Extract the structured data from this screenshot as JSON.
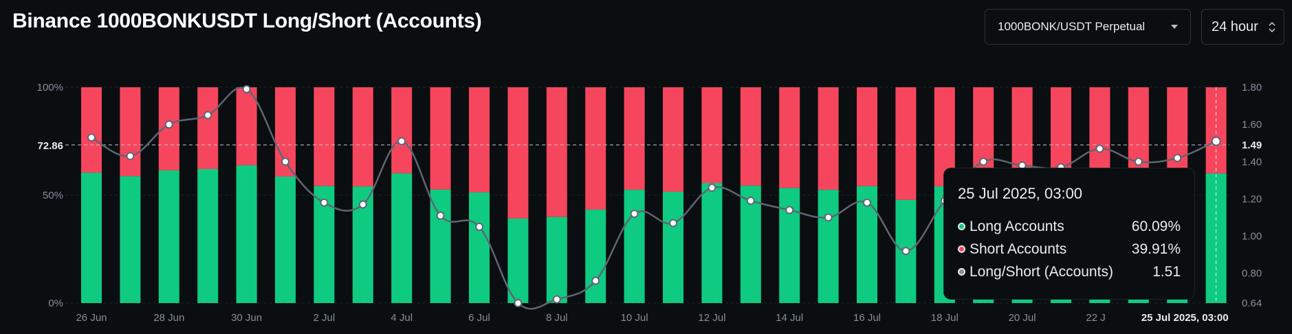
{
  "header": {
    "title": "Binance 1000BONKUSDT Long/Short (Accounts)",
    "symbol_select": "1000BONK/USDT Perpetual",
    "period_select": "24 hour"
  },
  "chart_data": {
    "type": "bar",
    "title": "Binance 1000BONKUSDT Long/Short (Accounts)",
    "categories": [
      "26 Jun",
      "27 Jun",
      "28 Jun",
      "29 Jun",
      "30 Jun",
      "1 Jul",
      "2 Jul",
      "3 Jul",
      "4 Jul",
      "5 Jul",
      "6 Jul",
      "7 Jul",
      "8 Jul",
      "9 Jul",
      "10 Jul",
      "11 Jul",
      "12 Jul",
      "13 Jul",
      "14 Jul",
      "15 Jul",
      "16 Jul",
      "17 Jul",
      "18 Jul",
      "19 Jul",
      "20 Jul",
      "21 Jul",
      "22 Jul",
      "23 Jul",
      "24 Jul",
      "25 Jul 2025, 03:00"
    ],
    "x_tick_labels": [
      "26 Jun",
      "28 Jun",
      "30 Jun",
      "2 Jul",
      "4 Jul",
      "6 Jul",
      "8 Jul",
      "10 Jul",
      "12 Jul",
      "14 Jul",
      "16 Jul",
      "18 Jul",
      "20 Jul",
      "22 Jul"
    ],
    "highlight_label": "25 Jul 2025, 03:00",
    "series": [
      {
        "name": "Long Accounts",
        "axis": "left",
        "stacked": true,
        "color": "#0ecb81",
        "values": [
          60.4,
          58.8,
          61.5,
          62.1,
          63.8,
          58.6,
          54.2,
          54.0,
          60.1,
          52.6,
          51.3,
          39.2,
          39.9,
          43.3,
          52.5,
          51.6,
          55.6,
          54.4,
          53.3,
          52.5,
          54.2,
          47.8,
          54.0,
          58.3,
          58.0,
          57.9,
          59.4,
          58.5,
          59.0,
          60.09
        ]
      },
      {
        "name": "Short Accounts",
        "axis": "left",
        "stacked": true,
        "color": "#f6465d",
        "values": [
          39.6,
          41.2,
          38.5,
          37.9,
          36.2,
          41.4,
          45.8,
          46.0,
          39.9,
          47.4,
          48.7,
          60.8,
          60.1,
          56.7,
          47.5,
          48.4,
          44.4,
          45.6,
          46.7,
          47.5,
          45.8,
          52.2,
          46.0,
          41.7,
          42.0,
          42.1,
          40.6,
          41.5,
          41.0,
          39.91
        ]
      },
      {
        "name": "Long/Short (Accounts)",
        "axis": "right",
        "type": "line",
        "color": "#5e6673",
        "values": [
          1.53,
          1.43,
          1.6,
          1.65,
          1.79,
          1.4,
          1.18,
          1.17,
          1.51,
          1.11,
          1.05,
          0.64,
          0.66,
          0.76,
          1.12,
          1.07,
          1.26,
          1.19,
          1.14,
          1.1,
          1.18,
          0.92,
          1.19,
          1.4,
          1.38,
          1.37,
          1.47,
          1.4,
          1.42,
          1.51
        ]
      }
    ],
    "left_axis": {
      "ticks": [
        "100%",
        "50%",
        "0%"
      ],
      "ylim": [
        0,
        100
      ],
      "crosshair_value": "72.86"
    },
    "right_axis": {
      "ticks": [
        "1.80",
        "1.60",
        "1.40",
        "1.20",
        "1.00",
        "0.80",
        "0.64"
      ],
      "ylim": [
        0.64,
        1.8
      ],
      "crosshair_value": "1.49"
    },
    "grid": true
  },
  "tooltip": {
    "date": "25 Jul 2025, 03:00",
    "rows": [
      {
        "label": "Long Accounts",
        "value": "60.09%",
        "color": "#0ecb81"
      },
      {
        "label": "Short Accounts",
        "value": "39.91%",
        "color": "#f6465d"
      },
      {
        "label": "Long/Short (Accounts)",
        "value": "1.51",
        "color": "#848e9c"
      }
    ]
  }
}
